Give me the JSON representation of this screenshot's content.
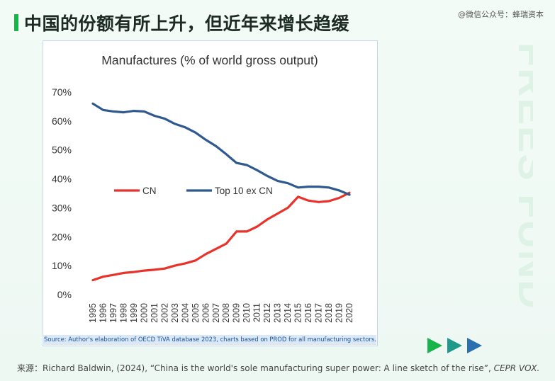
{
  "slide": {
    "title": "中国的份额有所上升，但近年来增长趋缓",
    "wechat_watermark": "@微信公众号：蜂瑞资本",
    "side_watermark": "FREES FUND"
  },
  "colors": {
    "accent_green": "#18b34a",
    "cn_series": "#e8322a",
    "top10_series": "#2f5a8f",
    "source_text": "#1a4f9c"
  },
  "icons": [
    "play-arrow-icon",
    "play-arrow-icon",
    "play-arrow-icon"
  ],
  "source_note": "Source: Author's elaboration of OECD   TiVA database 2023, charts based on PROD for all manufacturing sectors.",
  "footer": {
    "prefix": "来源：",
    "citation": "Richard Baldwin, (2024), “China is the world's sole manufacturing super power: A line sketch of the rise”, ",
    "journal": "CEPR VOX."
  },
  "chart_data": {
    "type": "line",
    "title": "Manufactures (% of world gross output)",
    "xlabel": "",
    "ylabel": "",
    "ylim": [
      0,
      70
    ],
    "yticks": [
      "0%",
      "10%",
      "20%",
      "30%",
      "40%",
      "50%",
      "60%",
      "70%"
    ],
    "grid": false,
    "legend_position": "middle-left",
    "x": [
      "1995",
      "1996",
      "1997",
      "1998",
      "1999",
      "2000",
      "2001",
      "2002",
      "2003",
      "2004",
      "2005",
      "2006",
      "2007",
      "2008",
      "2009",
      "2010",
      "2011",
      "2012",
      "2013",
      "2014",
      "2015",
      "2016",
      "2017",
      "2018",
      "2019",
      "2020"
    ],
    "series": [
      {
        "name": "CN",
        "color": "#e8322a",
        "values": [
          5.0,
          6.2,
          6.8,
          7.5,
          7.8,
          8.3,
          8.6,
          9.0,
          10.0,
          10.8,
          11.8,
          14.0,
          15.8,
          17.6,
          21.8,
          21.8,
          23.5,
          26.0,
          28.0,
          30.0,
          33.8,
          32.5,
          32.0,
          32.3,
          33.4,
          35.2
        ]
      },
      {
        "name": "Top  10 ex CN",
        "color": "#2f5a8f",
        "values": [
          66.0,
          63.8,
          63.3,
          63.0,
          63.5,
          63.3,
          61.8,
          60.8,
          59.0,
          57.8,
          56.0,
          53.5,
          51.3,
          48.5,
          45.5,
          44.8,
          43.0,
          41.0,
          39.3,
          38.5,
          37.0,
          37.3,
          37.3,
          37.0,
          36.0,
          34.5
        ]
      }
    ]
  }
}
